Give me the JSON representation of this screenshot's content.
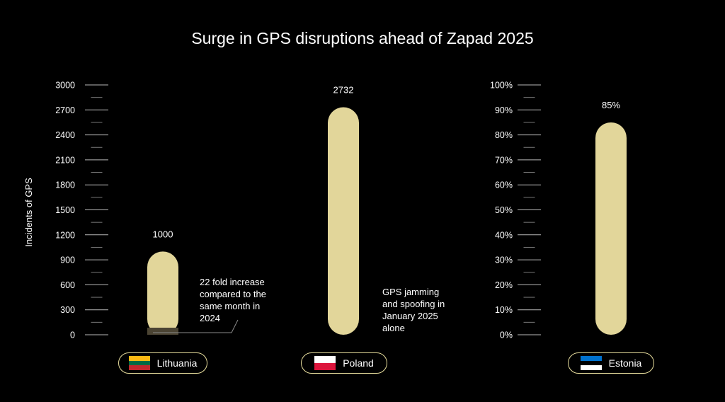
{
  "chart_data": {
    "type": "bar",
    "title": "Surge in GPS disruptions ahead of Zapad 2025",
    "ylabel": "Incidents of GPS",
    "bar_color": "#e2d69a",
    "label_color": "#ffffff",
    "left_axis": {
      "range": [
        0,
        3000
      ],
      "ticks": [
        "0",
        "300",
        "600",
        "900",
        "1200",
        "1500",
        "1800",
        "2100",
        "2400",
        "2700",
        "3000"
      ]
    },
    "right_axis": {
      "range": [
        0,
        100
      ],
      "ticks": [
        "0%",
        "10%",
        "20%",
        "30%",
        "40%",
        "50%",
        "60%",
        "70%",
        "80%",
        "90%",
        "100%"
      ]
    },
    "bars": [
      {
        "country": "Lithuania",
        "value": 1000,
        "value_label": "1000",
        "axis": "left",
        "annotation": [
          "22 fold increase",
          "compared to the",
          "same month in",
          "2024"
        ],
        "flag_colors": [
          "#fdb913",
          "#006a44",
          "#c1272d"
        ]
      },
      {
        "country": "Poland",
        "value": 2732,
        "value_label": "2732",
        "axis": "left",
        "annotation": [
          "GPS jamming",
          "and spoofing in",
          "January 2025",
          "alone"
        ],
        "flag_colors": [
          "#ffffff",
          "#dc143c"
        ]
      },
      {
        "country": "Estonia",
        "value": 85,
        "value_label": "85%",
        "axis": "right",
        "annotation": [],
        "flag_colors": [
          "#0072ce",
          "#000000",
          "#ffffff"
        ]
      }
    ]
  }
}
